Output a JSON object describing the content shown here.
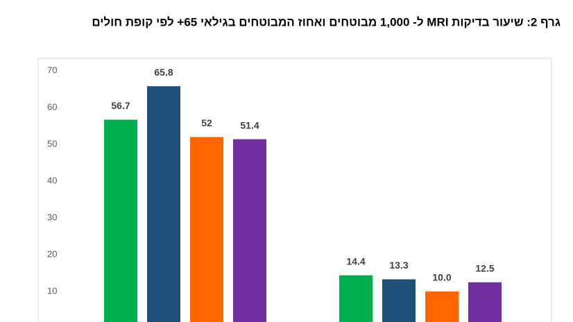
{
  "chart_data": {
    "type": "bar",
    "title": "גרף 2: שיעור בדיקות MRI ל- 1,000 מבוטחים ואחוז המבוטחים בגילאי 65+ לפי קופת חולים",
    "categories": [
      null,
      null
    ],
    "series": [
      {
        "color": "#00b050",
        "values": [
          56.7,
          14.4
        ]
      },
      {
        "color": "#1f4e79",
        "values": [
          65.8,
          13.3
        ]
      },
      {
        "color": "#ff6600",
        "values": [
          52,
          10.0
        ],
        "value_labels": [
          "52",
          "10.0"
        ]
      },
      {
        "color": "#7030a0",
        "values": [
          51.4,
          12.5
        ]
      }
    ],
    "ylim": [
      0,
      70
    ],
    "yticks": [
      10,
      20,
      30,
      40,
      50,
      60,
      70
    ],
    "grid": false
  }
}
